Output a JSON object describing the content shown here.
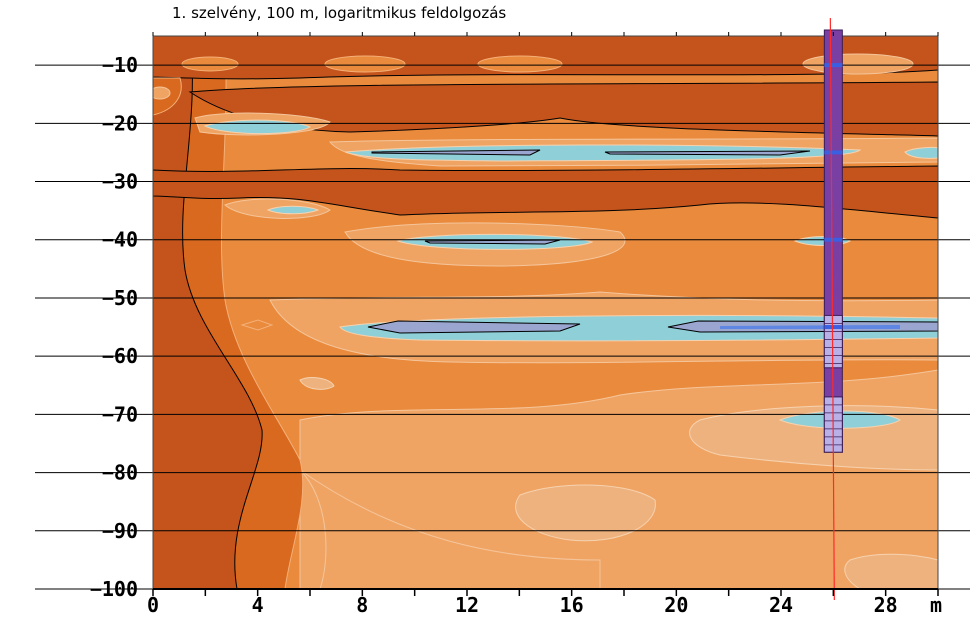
{
  "chart_data": {
    "type": "heatmap",
    "title": "1. szelvény, 100 m, logaritmikus feldolgozás",
    "x_unit": "m",
    "xlim": [
      0,
      30
    ],
    "ylim": [
      -100,
      -5
    ],
    "x_ticks": [
      0,
      4,
      8,
      12,
      16,
      20,
      24,
      28
    ],
    "x_tick_labels": [
      "0",
      "4",
      "8",
      "12",
      "16",
      "20",
      "24",
      "28"
    ],
    "y_ticks": [
      -10,
      -20,
      -30,
      -40,
      -50,
      -60,
      -70,
      -80,
      -90,
      -100
    ],
    "y_tick_labels": [
      "−10",
      "−20",
      "−30",
      "−40",
      "−50",
      "−60",
      "−70",
      "−80",
      "−90",
      "−100"
    ],
    "grid": "horizontal",
    "colors": {
      "darkest": "#c4541c",
      "dark": "#d8691f",
      "medium": "#e98a3c",
      "light": "#f0a464",
      "lightest": "#eeb27f",
      "cyan": "#8ecfd8",
      "blue_gray": "#9aa6cf",
      "blue": "#5f86e2",
      "borehole": "#7a3fa3",
      "borehole_segment": "#b8b0e6",
      "marker_line": "#ff2a2a"
    },
    "borehole": {
      "x": 26,
      "top": -4,
      "bottom": -76.5
    },
    "borehole_segments": [
      [
        -53,
        -62
      ],
      [
        -67,
        -76.5
      ]
    ],
    "vertical_marker_x": 26
  }
}
